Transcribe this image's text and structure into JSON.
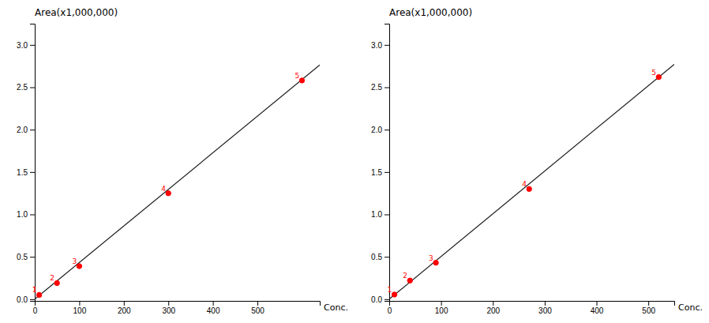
{
  "chart_data": [
    {
      "type": "scatter",
      "title": "Area(x1,000,000)",
      "xlabel": "Conc.",
      "xlim": [
        0,
        640
      ],
      "ylim": [
        -0.02,
        3.25
      ],
      "xticks": [
        0,
        100,
        200,
        300,
        400,
        500
      ],
      "yticks": [
        {
          "value": 0.0,
          "label": "0.0"
        },
        0.5,
        {
          "value": 1.0,
          "label": "1.0"
        },
        1.5,
        {
          "value": 2.0,
          "label": "2.0"
        },
        2.5,
        {
          "value": 3.0,
          "label": "3.0"
        }
      ],
      "series": [
        {
          "type": "line",
          "x": [
            0,
            640
          ],
          "values": [
            0,
            2.76288
          ],
          "color": "#1a1a1a"
        },
        {
          "type": "scatter",
          "x": [
            10,
            50,
            100,
            300,
            600
          ],
          "values": [
            0.05,
            0.19,
            0.39,
            1.25,
            2.58
          ],
          "point_labels": [
            "1",
            "2",
            "3",
            "4",
            "5"
          ],
          "color": "#FF0000"
        }
      ]
    },
    {
      "type": "scatter",
      "title": "Area(x1,000,000)",
      "xlabel": "Conc.",
      "xlim": [
        0,
        550
      ],
      "ylim": [
        -0.02,
        3.25
      ],
      "xticks": [
        0,
        100,
        200,
        300,
        400,
        500
      ],
      "yticks": [
        {
          "value": 0.0,
          "label": "0.0"
        },
        0.5,
        {
          "value": 1.0,
          "label": "1.0"
        },
        1.5,
        {
          "value": 2.0,
          "label": "2.0"
        },
        2.5,
        {
          "value": 3.0,
          "label": "3.0"
        }
      ],
      "series": [
        {
          "type": "line",
          "x": [
            0,
            550
          ],
          "values": [
            0,
            2.7709
          ],
          "color": "#1a1a1a"
        },
        {
          "type": "scatter",
          "x": [
            10,
            40,
            90,
            270,
            520
          ],
          "values": [
            0.055,
            0.22,
            0.43,
            1.3,
            2.62
          ],
          "point_labels": [
            "1",
            "2",
            "3",
            "4",
            "5"
          ],
          "color": "#FF0000"
        }
      ]
    }
  ]
}
